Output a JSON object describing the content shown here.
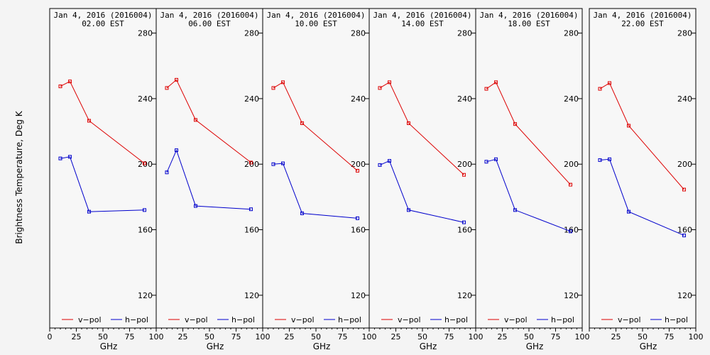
{
  "ylabel": "Brightness Temperature, Deg K",
  "xlabel": "GHz",
  "legend": {
    "v": "v−pol",
    "h": "h−pol"
  },
  "colors": {
    "v": "#dd0000",
    "h": "#0000cc"
  },
  "chart_data": [
    {
      "type": "line",
      "title": "Jan  4, 2016 (2016004)",
      "subtitle": "02.00 EST",
      "x": [
        10,
        19,
        37,
        89
      ],
      "series": [
        {
          "name": "v−pol",
          "values": [
            247.5,
            250.5,
            226.5,
            200.5
          ]
        },
        {
          "name": "h−pol",
          "values": [
            203.5,
            204.5,
            171,
            172
          ]
        }
      ],
      "xlim": [
        0,
        100
      ],
      "ylim": [
        100,
        295
      ],
      "xticks": [
        0,
        25,
        50,
        75,
        100
      ],
      "yticks": [
        120,
        160,
        200,
        240,
        280
      ]
    },
    {
      "type": "line",
      "title": "Jan  4, 2016 (2016004)",
      "subtitle": "06.00 EST",
      "x": [
        10,
        19,
        37,
        89
      ],
      "series": [
        {
          "name": "v−pol",
          "values": [
            246.5,
            251.5,
            227,
            201
          ]
        },
        {
          "name": "h−pol",
          "values": [
            195,
            208.5,
            174.5,
            172.5
          ]
        }
      ],
      "xlim": [
        0,
        100
      ],
      "ylim": [
        100,
        295
      ],
      "xticks": [
        0,
        25,
        50,
        75,
        100
      ],
      "yticks": [
        120,
        160,
        200,
        240,
        280
      ]
    },
    {
      "type": "line",
      "title": "Jan  4, 2016 (2016004)",
      "subtitle": "10.00 EST",
      "x": [
        10,
        19,
        37,
        89
      ],
      "series": [
        {
          "name": "v−pol",
          "values": [
            246.5,
            250,
            225,
            196
          ]
        },
        {
          "name": "h−pol",
          "values": [
            200,
            200.5,
            170,
            167
          ]
        }
      ],
      "xlim": [
        0,
        100
      ],
      "ylim": [
        100,
        295
      ],
      "xticks": [
        0,
        25,
        50,
        75,
        100
      ],
      "yticks": [
        120,
        160,
        200,
        240,
        280
      ]
    },
    {
      "type": "line",
      "title": "Jan  4, 2016 (2016004)",
      "subtitle": "14.00 EST",
      "x": [
        10,
        19,
        37,
        89
      ],
      "series": [
        {
          "name": "v−pol",
          "values": [
            246.5,
            250,
            225,
            193.5
          ]
        },
        {
          "name": "h−pol",
          "values": [
            199.5,
            202,
            172,
            164.5
          ]
        }
      ],
      "xlim": [
        0,
        100
      ],
      "ylim": [
        100,
        295
      ],
      "xticks": [
        0,
        25,
        50,
        75,
        100
      ],
      "yticks": [
        120,
        160,
        200,
        240,
        280
      ]
    },
    {
      "type": "line",
      "title": "Jan  4, 2016 (2016004)",
      "subtitle": "18.00 EST",
      "x": [
        10,
        19,
        37,
        89
      ],
      "series": [
        {
          "name": "v−pol",
          "values": [
            246,
            250,
            224.5,
            187.5
          ]
        },
        {
          "name": "h−pol",
          "values": [
            201.5,
            203,
            172,
            159
          ]
        }
      ],
      "xlim": [
        0,
        100
      ],
      "ylim": [
        100,
        295
      ],
      "xticks": [
        0,
        25,
        50,
        75,
        100
      ],
      "yticks": [
        120,
        160,
        200,
        240,
        280
      ]
    },
    {
      "type": "line",
      "title": "Jan  4, 2016 (2016004)",
      "subtitle": "22.00 EST",
      "x": [
        10,
        19,
        37,
        89
      ],
      "series": [
        {
          "name": "v−pol",
          "values": [
            246,
            249.5,
            223.5,
            184.5
          ]
        },
        {
          "name": "h−pol",
          "values": [
            202.5,
            203,
            171,
            156.5
          ]
        }
      ],
      "xlim": [
        0,
        100
      ],
      "ylim": [
        100,
        295
      ],
      "xticks": [
        0,
        25,
        50,
        75,
        100
      ],
      "yticks": [
        120,
        160,
        200,
        240,
        280
      ]
    }
  ]
}
